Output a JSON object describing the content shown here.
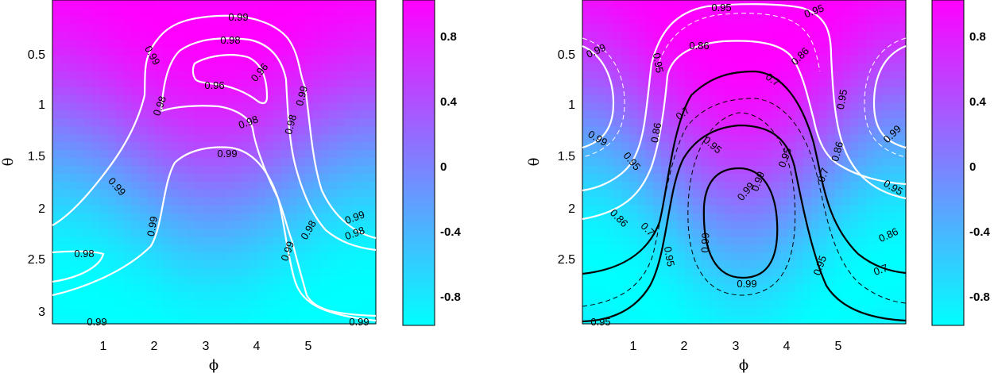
{
  "chart_data": [
    {
      "type": "heatmap",
      "title": "",
      "xlabel": "ϕ",
      "ylabel": "θ",
      "xlim": [
        0,
        6.283
      ],
      "ylim": [
        0,
        3.1416
      ],
      "y_inverted": true,
      "x_ticks": [
        "1",
        "2",
        "3",
        "4",
        "5"
      ],
      "y_ticks": [
        "0.5",
        "1",
        "1.5",
        "2",
        "2.5",
        "3"
      ],
      "colormap": [
        "#00ffff",
        "#ff00ff"
      ],
      "colorbar": {
        "range": [
          -1,
          1
        ],
        "ticks": [
          "0.8",
          "0.4",
          "0",
          "-0.4",
          "-0.8"
        ]
      },
      "field": "cos(theta + 0.3*cos(phi))",
      "contour_levels": [
        0.99,
        0.98,
        0.96
      ],
      "contour_line_style": [
        {
          "color": "#ffffff",
          "style": "solid"
        }
      ],
      "contour_labels": [
        "0.99",
        "0.98",
        "0.96",
        "0.99",
        "0.98",
        "0.96",
        "0.98",
        "0.99",
        "0.98",
        "0.99",
        "0.99",
        "0.98",
        "0.99",
        "0.98",
        "0.99",
        "0.99",
        "0.98",
        "0.99",
        "0.99"
      ]
    },
    {
      "type": "heatmap",
      "title": "",
      "xlabel": "ϕ",
      "ylabel": "θ",
      "xlim": [
        0,
        6.283
      ],
      "ylim": [
        0,
        3.1416
      ],
      "y_inverted": true,
      "x_ticks": [
        "1",
        "2",
        "3",
        "4",
        "5"
      ],
      "y_ticks": [
        "0.5",
        "1",
        "1.5",
        "2",
        "2.5"
      ],
      "colormap": [
        "#00ffff",
        "#ff00ff"
      ],
      "colorbar": {
        "range": [
          -1,
          1
        ],
        "ticks": [
          "0.8",
          "0.4",
          "0",
          "-0.4",
          "-0.8"
        ]
      },
      "field": "cos(theta + 0.5*cos(phi))",
      "contour_levels": [
        0.99,
        0.95,
        0.86,
        0.7
      ],
      "contour_line_style": [
        {
          "color": "#ffffff",
          "style": "solid/dashed"
        },
        {
          "color": "#000000",
          "style": "solid/dashed"
        }
      ],
      "contour_labels": [
        "0.95",
        "0.95",
        "0.99",
        "0.95",
        "0.86",
        "0.86",
        "0.7",
        "0.95",
        "0.86",
        "0.7",
        "0.95",
        "0.99",
        "0.95",
        "0.99",
        "0.95",
        "0.7",
        "0.86",
        "0.95",
        "0.99",
        "0.99",
        "0.86",
        "0.7",
        "0.86",
        "0.99",
        "0.95",
        "0.95",
        "0.7",
        "0.99",
        "0.95"
      ]
    }
  ]
}
